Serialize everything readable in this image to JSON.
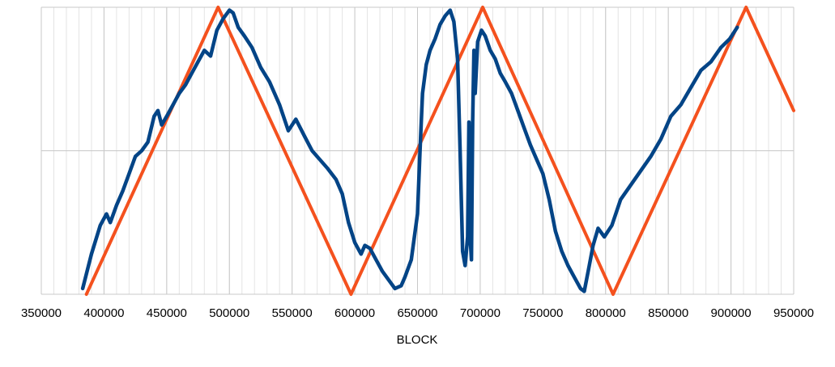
{
  "chart_data": {
    "type": "line",
    "title": "",
    "xlabel": "BLOCK",
    "ylabel": "",
    "xlim": [
      350000,
      950000
    ],
    "ylim": [
      0,
      1
    ],
    "x_ticks": [
      350000,
      400000,
      450000,
      500000,
      550000,
      600000,
      650000,
      700000,
      750000,
      800000,
      850000,
      900000,
      950000
    ],
    "x_tick_labels": [
      "350000",
      "400000",
      "450000",
      "500000",
      "550000",
      "600000",
      "650000",
      "700000",
      "750000",
      "800000",
      "850000",
      "900000",
      "950000"
    ],
    "grid": true,
    "legend": "none",
    "series": [
      {
        "color": "#f4511e",
        "x": [
          386000,
          491000,
          597000,
          702000,
          806000,
          912000,
          950000
        ],
        "y": [
          0.0,
          1.0,
          0.0,
          1.0,
          0.0,
          1.0,
          0.64
        ]
      },
      {
        "color": "#034486",
        "x": [
          383000,
          390000,
          397000,
          402000,
          405000,
          410000,
          415000,
          420000,
          425000,
          430000,
          435000,
          440000,
          443000,
          446000,
          450000,
          455000,
          460000,
          465000,
          470000,
          475000,
          480000,
          485000,
          490000,
          495000,
          500000,
          503000,
          507000,
          512000,
          518000,
          525000,
          532000,
          540000,
          547000,
          553000,
          560000,
          566000,
          572000,
          578000,
          585000,
          590000,
          595000,
          600000,
          605000,
          608000,
          612000,
          617000,
          622000,
          627000,
          632000,
          637000,
          640000,
          645000,
          650000,
          652000,
          654000,
          657000,
          660000,
          664000,
          668000,
          672000,
          676000,
          679000,
          682000,
          684000,
          686000,
          688000,
          690000,
          691000,
          692000,
          693000,
          694000,
          695000,
          696000,
          698000,
          701000,
          704000,
          708000,
          712000,
          716000,
          720000,
          725000,
          730000,
          735000,
          740000,
          745000,
          750000,
          755000,
          760000,
          765000,
          770000,
          775000,
          780000,
          783000,
          787000,
          790000,
          794000,
          799000,
          805000,
          812000,
          820000,
          828000,
          836000,
          844000,
          852000,
          860000,
          868000,
          876000,
          884000,
          892000,
          899000,
          905000
        ],
        "y": [
          0.02,
          0.14,
          0.24,
          0.28,
          0.25,
          0.31,
          0.36,
          0.42,
          0.48,
          0.5,
          0.53,
          0.62,
          0.64,
          0.59,
          0.62,
          0.66,
          0.7,
          0.73,
          0.77,
          0.81,
          0.85,
          0.83,
          0.92,
          0.96,
          0.99,
          0.98,
          0.93,
          0.9,
          0.86,
          0.79,
          0.74,
          0.66,
          0.57,
          0.61,
          0.55,
          0.5,
          0.47,
          0.44,
          0.4,
          0.35,
          0.25,
          0.18,
          0.14,
          0.17,
          0.16,
          0.12,
          0.08,
          0.05,
          0.02,
          0.03,
          0.06,
          0.12,
          0.28,
          0.5,
          0.7,
          0.8,
          0.85,
          0.89,
          0.94,
          0.97,
          0.99,
          0.95,
          0.82,
          0.5,
          0.15,
          0.1,
          0.2,
          0.6,
          0.2,
          0.12,
          0.6,
          0.85,
          0.7,
          0.88,
          0.92,
          0.9,
          0.85,
          0.82,
          0.77,
          0.74,
          0.7,
          0.64,
          0.58,
          0.52,
          0.47,
          0.42,
          0.33,
          0.22,
          0.15,
          0.1,
          0.06,
          0.02,
          0.01,
          0.1,
          0.17,
          0.23,
          0.2,
          0.24,
          0.33,
          0.38,
          0.43,
          0.48,
          0.54,
          0.62,
          0.66,
          0.72,
          0.78,
          0.81,
          0.86,
          0.89,
          0.93
        ]
      }
    ]
  }
}
